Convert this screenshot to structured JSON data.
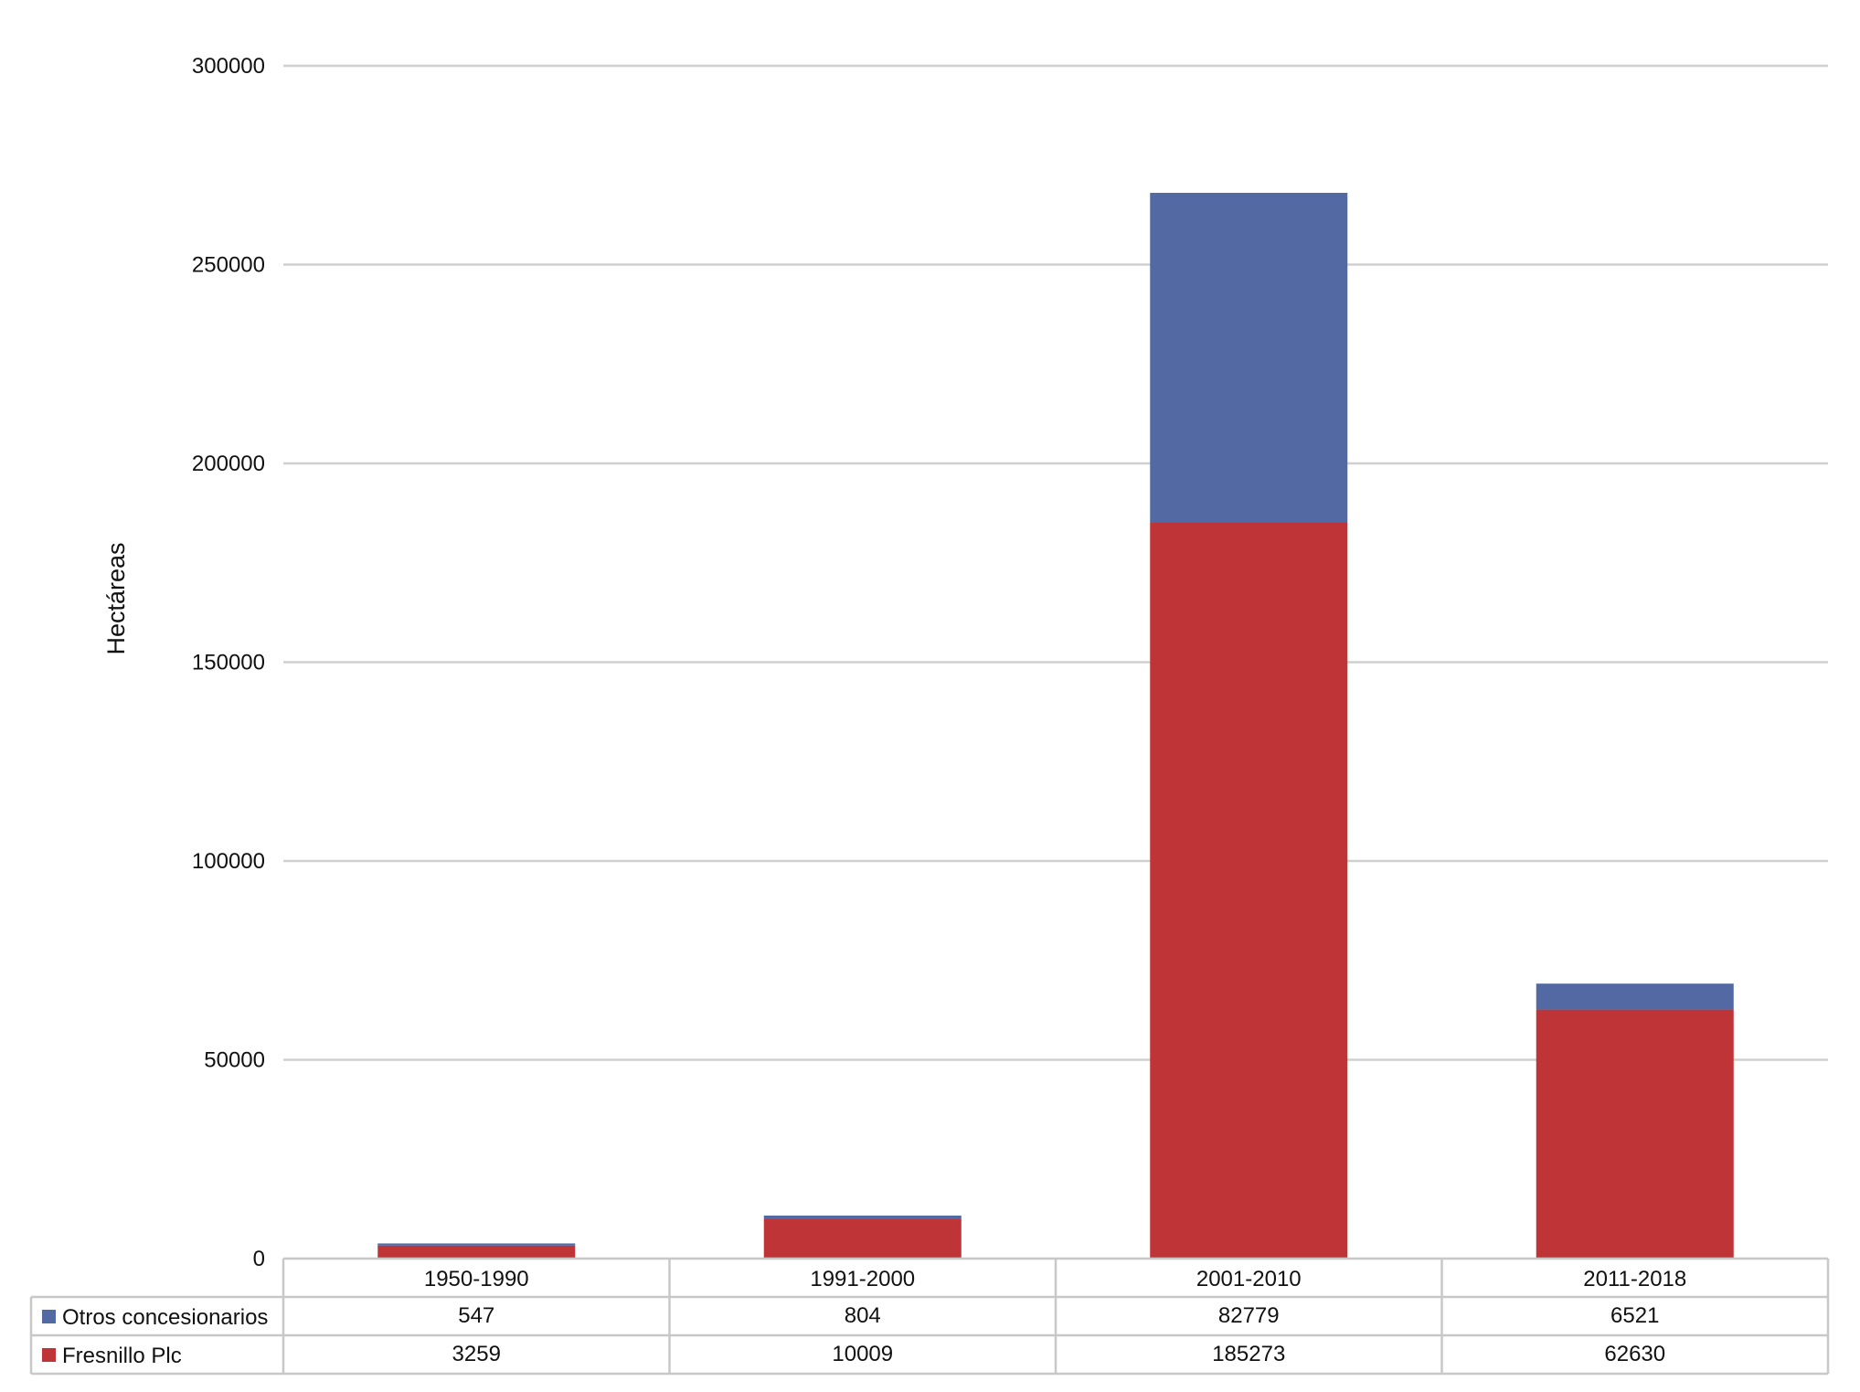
{
  "chart_data": {
    "type": "bar",
    "stacked": true,
    "categories": [
      "1950-1990",
      "1991-2000",
      "2001-2010",
      "2011-2018"
    ],
    "series": [
      {
        "name": "Fresnillo Plc",
        "values": [
          3259,
          10009,
          185273,
          62630
        ],
        "color": "#BE3437"
      },
      {
        "name": "Otros concesionarios",
        "values": [
          547,
          804,
          82779,
          6521
        ],
        "color": "#5369A3"
      }
    ],
    "data_table": {
      "rows": [
        {
          "series": "Otros concesionarios",
          "values": [
            "547",
            "804",
            "82779",
            "6521"
          ]
        },
        {
          "series": "Fresnillo Plc",
          "values": [
            "3259",
            "10009",
            "185273",
            "62630"
          ]
        }
      ]
    },
    "title": "",
    "xlabel": "",
    "ylabel": "Hectáreas",
    "ylim": [
      0,
      300000
    ],
    "yticks": [
      "0",
      "50000",
      "100000",
      "150000",
      "200000",
      "250000",
      "300000"
    ],
    "grid": true,
    "legend": "data-table-left"
  }
}
